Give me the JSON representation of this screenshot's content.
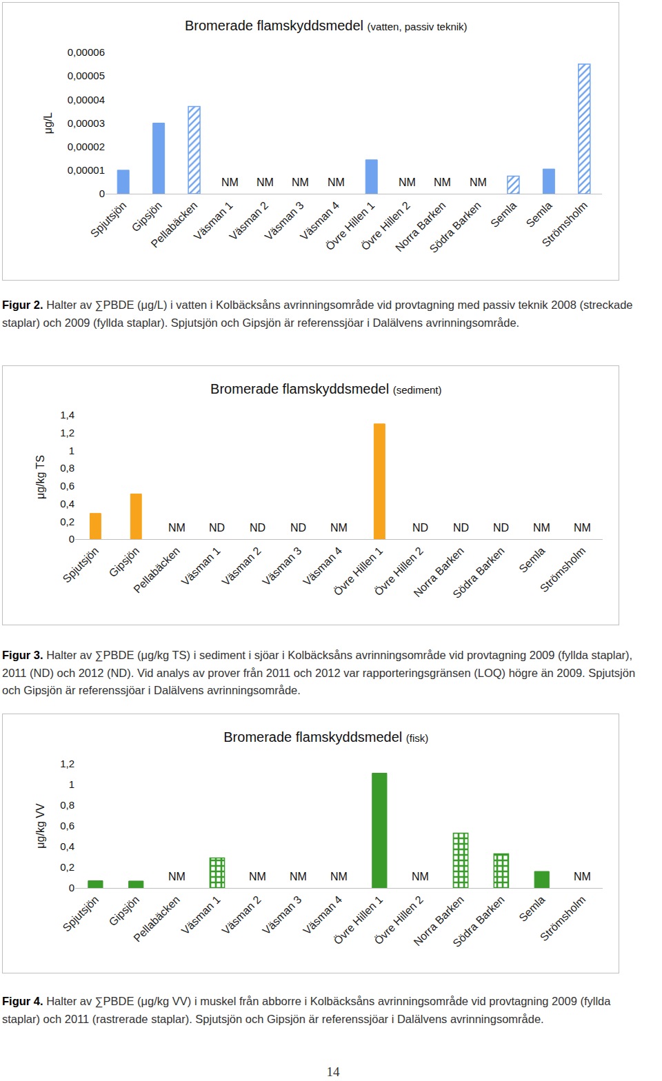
{
  "chart_data": [
    {
      "type": "bar",
      "title": "Bromerade flamskyddsmedel",
      "subtitle": "(vatten, passiv teknik)",
      "y_label": "μg/L",
      "categories": [
        "Spjutsjön",
        "Gipsjön",
        "Pellabäcken",
        "Väsman 1",
        "Väsman 2",
        "Väsman 3",
        "Väsman 4",
        "Övre Hillen 1",
        "Övre Hillen 2",
        "Norra Barken",
        "Södra Barken",
        "Semla",
        "Semla",
        "Strömsholm"
      ],
      "series": [
        {
          "marker": "hatched",
          "color": "#6fa3ef",
          "values": [
            null,
            null,
            3.7e-05,
            null,
            null,
            null,
            null,
            null,
            null,
            null,
            null,
            7.5e-06,
            null,
            5.5e-05
          ]
        },
        {
          "marker": "solid",
          "color": "#6fa3ef",
          "values": [
            1e-05,
            3e-05,
            null,
            null,
            null,
            null,
            null,
            1.44e-05,
            null,
            null,
            null,
            null,
            1.05e-05,
            null
          ]
        }
      ],
      "annotations": [
        null,
        null,
        null,
        "NM",
        "NM",
        "NM",
        "NM",
        null,
        "NM",
        "NM",
        "NM",
        null,
        null,
        null
      ],
      "ylim": [
        0,
        6e-05
      ],
      "yticks": [
        0,
        {
          "value": 1e-05,
          "label": "0,00001"
        },
        {
          "value": 2e-05,
          "label": "0,00002"
        },
        {
          "value": 3e-05,
          "label": "0,00003"
        },
        {
          "value": 4e-05,
          "label": "0,00004"
        },
        {
          "value": 5e-05,
          "label": "0,00005"
        },
        {
          "value": 6e-05,
          "label": "0,00006"
        }
      ],
      "grid": false,
      "caption": {
        "label": "Figur 2.",
        "text": "Halter av ∑PBDE (μg/L) i vatten i Kolbäcksåns avrinningsområde vid provtagning med passiv teknik 2008 (streckade staplar) och 2009 (fyllda staplar). Spjutsjön och Gipsjön är referenssjöar i Dalälvens avrinningsområde."
      }
    },
    {
      "type": "bar",
      "title": "Bromerade flamskyddsmedel",
      "subtitle": "(sediment)",
      "y_label": "μg/kg TS",
      "categories": [
        "Spjutsjön",
        "Gipsjön",
        "Pellabäcken",
        "Väsman 1",
        "Väsman 2",
        "Väsman 3",
        "Väsman 4",
        "Övre Hillen 1",
        "Övre Hillen 2",
        "Norra Barken",
        "Södra Barken",
        "Semla",
        "Strömsholm"
      ],
      "series": [
        {
          "marker": "solid",
          "color": "#f8a31c",
          "values": [
            0.29,
            0.51,
            null,
            null,
            null,
            null,
            null,
            1.3,
            null,
            null,
            null,
            null,
            null
          ]
        }
      ],
      "annotations": [
        null,
        null,
        "NM",
        "ND",
        "ND",
        "ND",
        "NM",
        null,
        "ND",
        "ND",
        "ND",
        "NM",
        "NM"
      ],
      "ylim": [
        0,
        1.4
      ],
      "yticks": [
        0,
        {
          "value": 0.2,
          "label": "0,2"
        },
        {
          "value": 0.4,
          "label": "0,4"
        },
        {
          "value": 0.6,
          "label": "0,6"
        },
        {
          "value": 0.8,
          "label": "0,8"
        },
        1,
        {
          "value": 1.2,
          "label": "1,2"
        },
        {
          "value": 1.4,
          "label": "1,4"
        }
      ],
      "grid": false,
      "caption": {
        "label": "Figur 3.",
        "text": "Halter av ∑PBDE (μg/kg TS) i sediment i sjöar i Kolbäcksåns avrinningsområde vid provtagning 2009 (fyllda staplar), 2011 (ND) och 2012 (ND). Vid analys av prover från 2011 och 2012 var rapporteringsgränsen (LOQ) högre än 2009. Spjutsjön och Gipsjön är referenssjöar i Dalälvens avrinningsområde."
      }
    },
    {
      "type": "bar",
      "title": "Bromerade flamskyddsmedel",
      "subtitle": "(fisk)",
      "y_label": "μg/kg VV",
      "categories": [
        "Spjutsjön",
        "Gipsjön",
        "Pellabäcken",
        "Väsman 1",
        "Väsman 2",
        "Väsman 3",
        "Väsman 4",
        "Övre Hillen 1",
        "Övre Hillen 2",
        "Norra Barken",
        "Södra Barken",
        "Semla",
        "Strömsholm"
      ],
      "series": [
        {
          "marker": "checkered",
          "color": "#3a9a2a",
          "values": [
            null,
            null,
            null,
            0.29,
            null,
            null,
            null,
            null,
            null,
            0.53,
            0.33,
            null,
            null
          ]
        },
        {
          "marker": "solid",
          "color": "#3a9a2a",
          "values": [
            0.07,
            0.067,
            null,
            null,
            null,
            null,
            null,
            1.11,
            null,
            null,
            null,
            0.16,
            null
          ]
        }
      ],
      "annotations": [
        null,
        null,
        "NM",
        null,
        "NM",
        "NM",
        "NM",
        null,
        "NM",
        null,
        null,
        null,
        "NM"
      ],
      "ylim": [
        0,
        1.2
      ],
      "yticks": [
        0,
        {
          "value": 0.2,
          "label": "0,2"
        },
        {
          "value": 0.4,
          "label": "0,4"
        },
        {
          "value": 0.6,
          "label": "0,6"
        },
        {
          "value": 0.8,
          "label": "0,8"
        },
        1,
        {
          "value": 1.2,
          "label": "1,2"
        }
      ],
      "grid": false,
      "caption": {
        "label": "Figur 4.",
        "text": "Halter av ∑PBDE (μg/kg VV) i muskel från abborre i Kolbäcksåns avrinningsområde vid provtagning 2009 (fyllda staplar) och 2011 (rastrerade staplar). Spjutsjön och Gipsjön är referenssjöar i Dalälvens avrinningsområde."
      }
    }
  ],
  "page_number": "14"
}
